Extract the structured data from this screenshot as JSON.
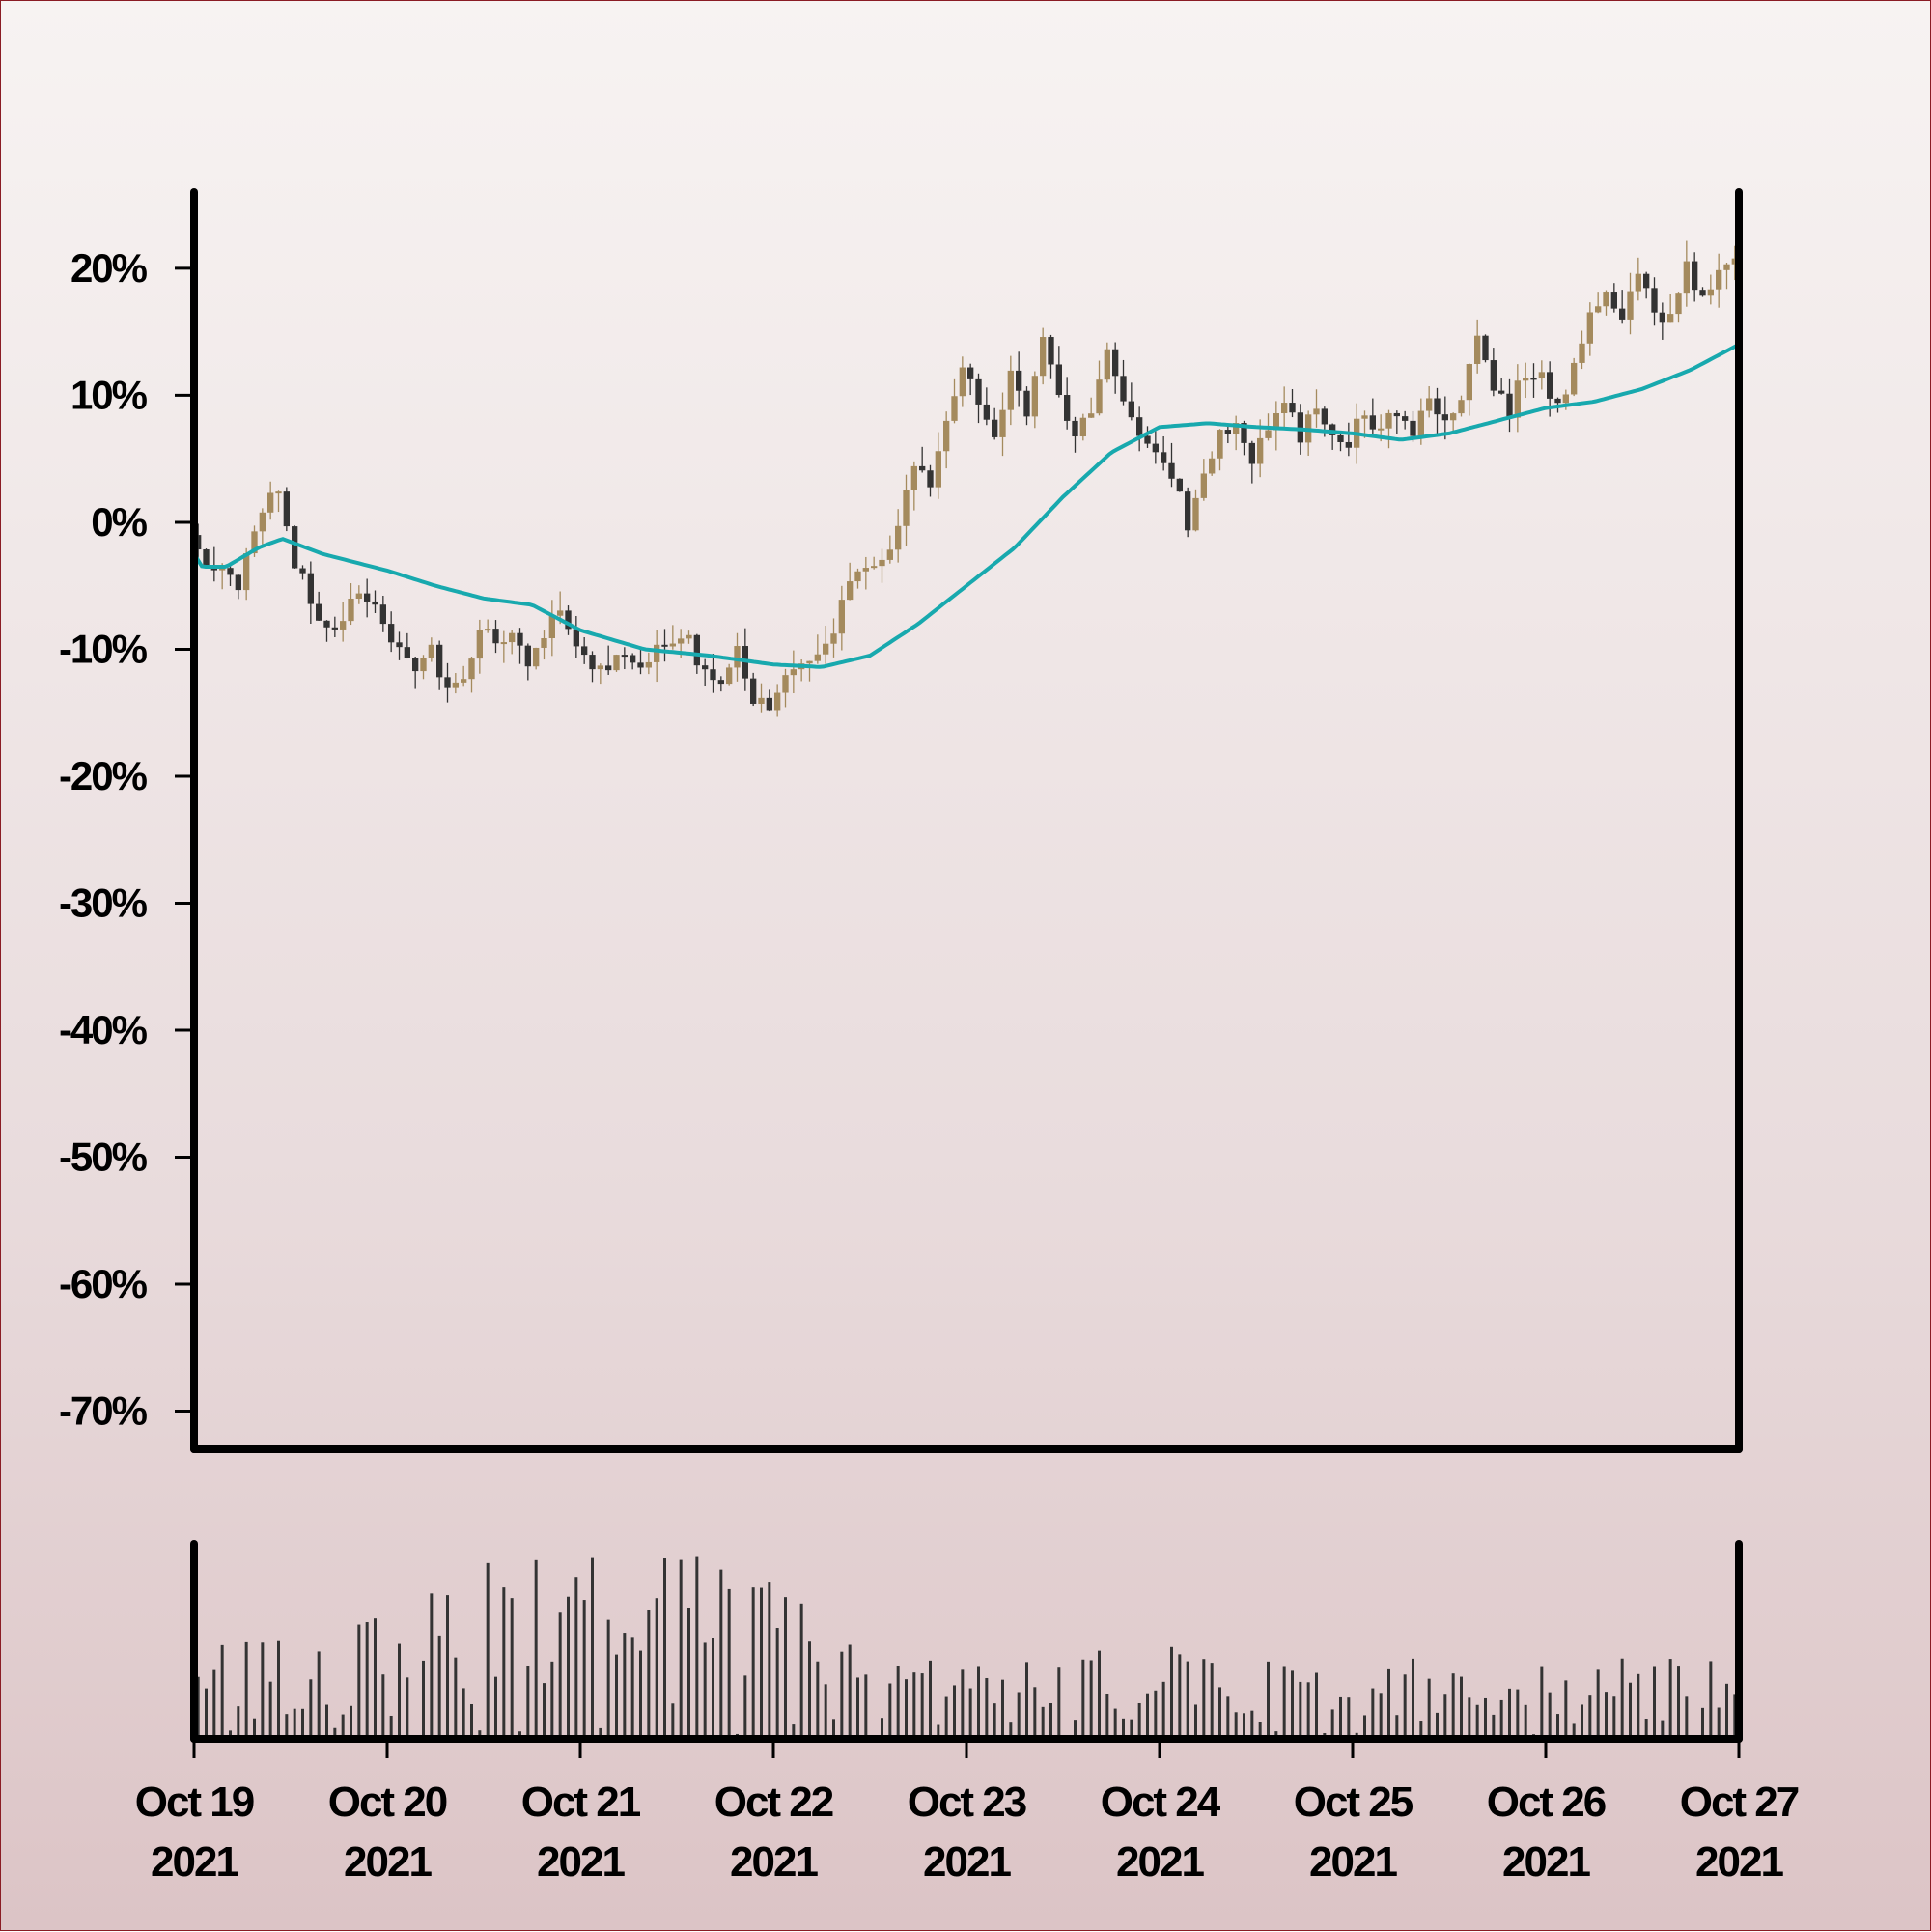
{
  "chart_data": {
    "type": "candlestick",
    "title": "",
    "xlabel": "",
    "ylabel": "",
    "y_unit": "percent change",
    "ylim": [
      -73,
      26
    ],
    "y_ticks": [
      20,
      10,
      0,
      -10,
      -20,
      -30,
      -40,
      -50,
      -60,
      -70
    ],
    "y_tick_labels": [
      "20%",
      "10%",
      "0%",
      "-10%",
      "-20%",
      "-30%",
      "-40%",
      "-50%",
      "-60%",
      "-70%"
    ],
    "x_start": "2021-10-19",
    "x_end": "2021-10-27",
    "x_ticks": [
      "2021-10-19",
      "2021-10-20",
      "2021-10-21",
      "2021-10-22",
      "2021-10-23",
      "2021-10-24",
      "2021-10-25",
      "2021-10-26",
      "2021-10-27"
    ],
    "x_tick_labels": [
      {
        "line1": "Oct 19",
        "line2": "2021"
      },
      {
        "line1": "Oct 20",
        "line2": "2021"
      },
      {
        "line1": "Oct 21",
        "line2": "2021"
      },
      {
        "line1": "Oct 22",
        "line2": "2021"
      },
      {
        "line1": "Oct 23",
        "line2": "2021"
      },
      {
        "line1": "Oct 24",
        "line2": "2021"
      },
      {
        "line1": "Oct 25",
        "line2": "2021"
      },
      {
        "line1": "Oct 26",
        "line2": "2021"
      },
      {
        "line1": "Oct 27",
        "line2": "2021"
      }
    ],
    "price_path": [
      [
        "2021-10-19 00:00",
        -1
      ],
      [
        "2021-10-19 02:00",
        -4
      ],
      [
        "2021-10-19 04:00",
        -3
      ],
      [
        "2021-10-19 06:00",
        -5
      ],
      [
        "2021-10-19 08:00",
        -1
      ],
      [
        "2021-10-19 10:00",
        3
      ],
      [
        "2021-10-19 11:00",
        3
      ],
      [
        "2021-10-19 13:00",
        -3
      ],
      [
        "2021-10-19 16:00",
        -7
      ],
      [
        "2021-10-19 18:00",
        -9
      ],
      [
        "2021-10-19 20:00",
        -6
      ],
      [
        "2021-10-19 23:00",
        -7
      ],
      [
        "2021-10-20 02:00",
        -10
      ],
      [
        "2021-10-20 04:00",
        -11
      ],
      [
        "2021-10-20 06:00",
        -10
      ],
      [
        "2021-10-20 08:00",
        -13
      ],
      [
        "2021-10-20 10:00",
        -12
      ],
      [
        "2021-10-20 12:00",
        -9
      ],
      [
        "2021-10-20 16:00",
        -9
      ],
      [
        "2021-10-20 18:00",
        -11
      ],
      [
        "2021-10-20 20:00",
        -9
      ],
      [
        "2021-10-20 22:00",
        -7
      ],
      [
        "2021-10-21 01:00",
        -11
      ],
      [
        "2021-10-21 04:00",
        -12
      ],
      [
        "2021-10-21 06:00",
        -10
      ],
      [
        "2021-10-21 08:00",
        -11
      ],
      [
        "2021-10-21 10:00",
        -10
      ],
      [
        "2021-10-21 12:00",
        -9
      ],
      [
        "2021-10-21 14:00",
        -9
      ],
      [
        "2021-10-21 16:00",
        -12
      ],
      [
        "2021-10-21 18:00",
        -13
      ],
      [
        "2021-10-21 20:00",
        -10
      ],
      [
        "2021-10-21 22:00",
        -14
      ],
      [
        "2021-10-22 00:00",
        -14
      ],
      [
        "2021-10-22 02:00",
        -12
      ],
      [
        "2021-10-22 04:00",
        -11
      ],
      [
        "2021-10-22 06:00",
        -11
      ],
      [
        "2021-10-22 08:00",
        -8
      ],
      [
        "2021-10-22 10:00",
        -5
      ],
      [
        "2021-10-22 12:00",
        -4
      ],
      [
        "2021-10-22 14:00",
        -3
      ],
      [
        "2021-10-22 16:00",
        0
      ],
      [
        "2021-10-22 18:00",
        5
      ],
      [
        "2021-10-22 20:00",
        3
      ],
      [
        "2021-10-22 22:00",
        8
      ],
      [
        "2021-10-23 00:00",
        12
      ],
      [
        "2021-10-23 02:00",
        10
      ],
      [
        "2021-10-23 04:00",
        7
      ],
      [
        "2021-10-23 06:00",
        12
      ],
      [
        "2021-10-23 08:00",
        9
      ],
      [
        "2021-10-23 10:00",
        14
      ],
      [
        "2021-10-23 12:00",
        10
      ],
      [
        "2021-10-23 14:00",
        6
      ],
      [
        "2021-10-23 16:00",
        9
      ],
      [
        "2021-10-23 18:00",
        14
      ],
      [
        "2021-10-23 20:00",
        10
      ],
      [
        "2021-10-23 22:00",
        7
      ],
      [
        "2021-10-24 00:00",
        6
      ],
      [
        "2021-10-24 02:00",
        4
      ],
      [
        "2021-10-24 04:00",
        0
      ],
      [
        "2021-10-24 06:00",
        4
      ],
      [
        "2021-10-24 08:00",
        7
      ],
      [
        "2021-10-24 10:00",
        8
      ],
      [
        "2021-10-24 12:00",
        5
      ],
      [
        "2021-10-24 14:00",
        7
      ],
      [
        "2021-10-24 16:00",
        9
      ],
      [
        "2021-10-24 18:00",
        7
      ],
      [
        "2021-10-24 20:00",
        9
      ],
      [
        "2021-10-24 22:00",
        7
      ],
      [
        "2021-10-25 00:00",
        6
      ],
      [
        "2021-10-25 02:00",
        9
      ],
      [
        "2021-10-25 04:00",
        7
      ],
      [
        "2021-10-25 06:00",
        9
      ],
      [
        "2021-10-25 08:00",
        7
      ],
      [
        "2021-10-25 10:00",
        9
      ],
      [
        "2021-10-25 12:00",
        8
      ],
      [
        "2021-10-25 14:00",
        10
      ],
      [
        "2021-10-25 16:00",
        14
      ],
      [
        "2021-10-25 18:00",
        10
      ],
      [
        "2021-10-25 20:00",
        9
      ],
      [
        "2021-10-25 22:00",
        12
      ],
      [
        "2021-10-26 00:00",
        12
      ],
      [
        "2021-10-26 02:00",
        9
      ],
      [
        "2021-10-26 04:00",
        12
      ],
      [
        "2021-10-26 06:00",
        17
      ],
      [
        "2021-10-26 08:00",
        18
      ],
      [
        "2021-10-26 10:00",
        16
      ],
      [
        "2021-10-26 12:00",
        20
      ],
      [
        "2021-10-26 14:00",
        17
      ],
      [
        "2021-10-26 16:00",
        16
      ],
      [
        "2021-10-26 18:00",
        20
      ],
      [
        "2021-10-26 20:00",
        18
      ],
      [
        "2021-10-26 22:00",
        20
      ],
      [
        "2021-10-27 00:00",
        20
      ]
    ],
    "moving_average": [
      [
        "2021-10-19 00:00",
        -2.5
      ],
      [
        "2021-10-19 01:00",
        -3.5
      ],
      [
        "2021-10-19 04:00",
        -3.5
      ],
      [
        "2021-10-19 08:00",
        -2
      ],
      [
        "2021-10-19 11:00",
        -1.3
      ],
      [
        "2021-10-19 16:00",
        -2.5
      ],
      [
        "2021-10-20 00:00",
        -3.8
      ],
      [
        "2021-10-20 06:00",
        -5
      ],
      [
        "2021-10-20 12:00",
        -6
      ],
      [
        "2021-10-20 18:00",
        -6.5
      ],
      [
        "2021-10-21 00:00",
        -8.5
      ],
      [
        "2021-10-21 08:00",
        -10
      ],
      [
        "2021-10-21 16:00",
        -10.5
      ],
      [
        "2021-10-22 00:00",
        -11.2
      ],
      [
        "2021-10-22 06:00",
        -11.4
      ],
      [
        "2021-10-22 12:00",
        -10.5
      ],
      [
        "2021-10-22 18:00",
        -8
      ],
      [
        "2021-10-23 00:00",
        -5
      ],
      [
        "2021-10-23 06:00",
        -2
      ],
      [
        "2021-10-23 12:00",
        2
      ],
      [
        "2021-10-23 18:00",
        5.5
      ],
      [
        "2021-10-24 00:00",
        7.5
      ],
      [
        "2021-10-24 06:00",
        7.8
      ],
      [
        "2021-10-24 12:00",
        7.5
      ],
      [
        "2021-10-24 18:00",
        7.3
      ],
      [
        "2021-10-25 00:00",
        7
      ],
      [
        "2021-10-25 06:00",
        6.5
      ],
      [
        "2021-10-25 12:00",
        7
      ],
      [
        "2021-10-25 18:00",
        8
      ],
      [
        "2021-10-26 00:00",
        9
      ],
      [
        "2021-10-26 06:00",
        9.5
      ],
      [
        "2021-10-26 12:00",
        10.5
      ],
      [
        "2021-10-26 18:00",
        12
      ],
      [
        "2021-10-27 00:00",
        14
      ]
    ],
    "candles_per_day": 24,
    "volume_profile": [
      [
        "2021-10-19",
        0.45
      ],
      [
        "2021-10-20",
        0.55
      ],
      [
        "2021-10-20 12:00",
        0.8
      ],
      [
        "2021-10-21",
        0.85
      ],
      [
        "2021-10-21 12:00",
        0.8
      ],
      [
        "2021-10-22",
        0.75
      ],
      [
        "2021-10-22 06:00",
        0.5
      ],
      [
        "2021-10-22 12:00",
        0.35
      ],
      [
        "2021-10-23",
        0.35
      ],
      [
        "2021-10-24",
        0.4
      ],
      [
        "2021-10-25",
        0.35
      ],
      [
        "2021-10-26",
        0.35
      ],
      [
        "2021-10-27",
        0.35
      ]
    ],
    "grid": false,
    "colors": {
      "up_candle": "#a48a5d",
      "down_candle": "#333333",
      "moving_average": "#18a9ae",
      "volume_bar": "#333333",
      "axis": "#000000",
      "page_border": "#8a1c24"
    }
  }
}
